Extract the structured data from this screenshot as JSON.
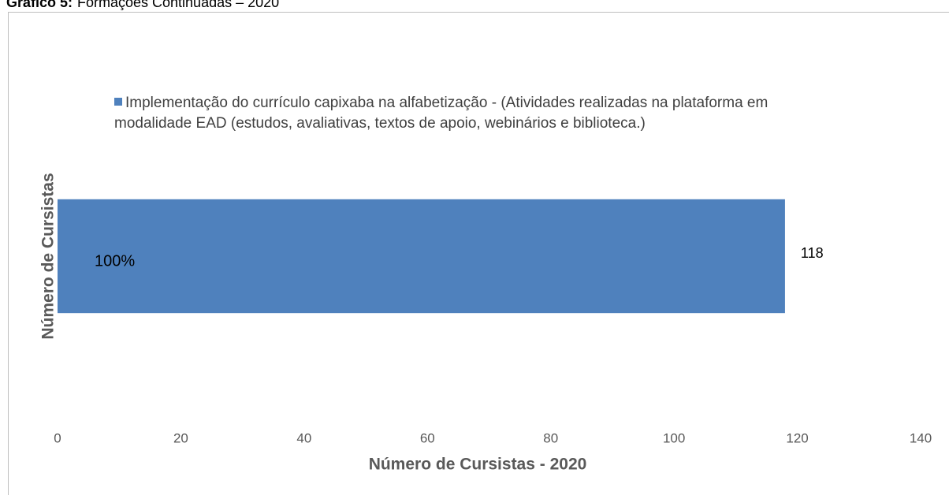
{
  "chart_data": {
    "type": "bar",
    "orientation": "horizontal",
    "title_label": "Gráfico 5:",
    "title": "Formações Continuadas – 2020",
    "x_label": "Número de Cursistas - 2020",
    "y_label": "Número de Cursistas",
    "categories": [
      null
    ],
    "series": [
      {
        "name": "Implementação do currículo capixaba na alfabetização - (Atividades realizadas na plataforma em modalidade EAD (estudos, avaliativas, textos de apoio, webinários e biblioteca.)",
        "color": "#4f81bd",
        "values": [
          118
        ]
      }
    ],
    "annotations": [
      "100%"
    ],
    "xlim": [
      0,
      140
    ],
    "xticks": [
      0,
      20,
      40,
      60,
      80,
      100,
      120,
      140
    ],
    "grid": false,
    "legend": "top"
  }
}
